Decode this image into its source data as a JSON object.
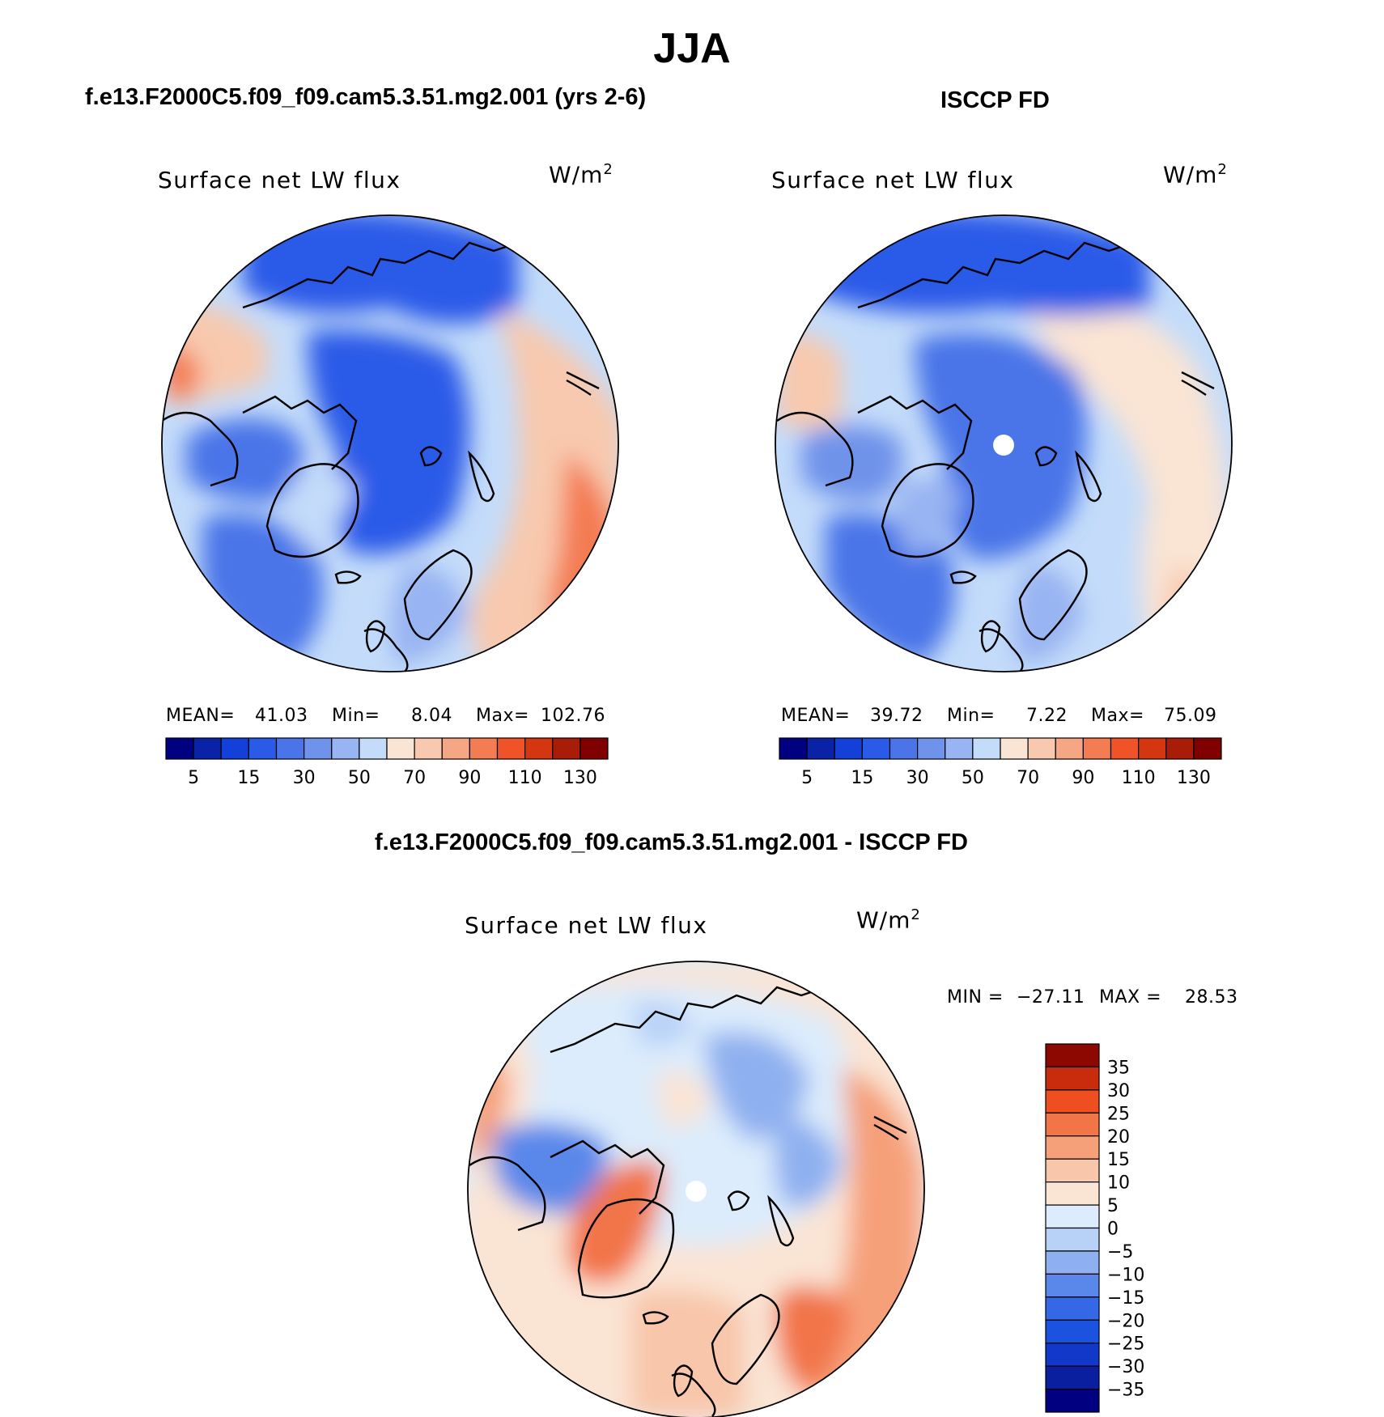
{
  "figure": {
    "title": "JJA",
    "variable": "Surface net LW flux",
    "units": "W/m",
    "units_exponent": "2"
  },
  "chart_data": [
    {
      "type": "heatmap",
      "projection": "north-polar-stereographic",
      "title": "f.e13.F2000C5.f09_f09.cam5.3.51.mg2.001 (yrs 2-6)",
      "subtitle": "Surface net LW flux",
      "units": "W/m2",
      "stats": {
        "mean_label": "MEAN=",
        "mean": "41.03",
        "min_label": "Min=",
        "min": "8.04",
        "max_label": "Max=",
        "max": "102.76"
      },
      "colorbar": {
        "orientation": "horizontal",
        "levels": [
          5,
          10,
          15,
          20,
          30,
          40,
          50,
          60,
          70,
          80,
          90,
          100,
          110,
          120,
          130
        ],
        "labels": [
          "5",
          "15",
          "30",
          "50",
          "70",
          "90",
          "110",
          "130"
        ],
        "colors": [
          "#000080",
          "#0a22a8",
          "#1340d8",
          "#2a5ae8",
          "#4a74e8",
          "#6f93ea",
          "#98b4f2",
          "#c4dcfa",
          "#fae4d4",
          "#f8c9ae",
          "#f6a682",
          "#f47c52",
          "#f05328",
          "#d43610",
          "#a81c08",
          "#800000"
        ]
      },
      "shading": {
        "north_pole": 1,
        "canada": 2,
        "greenland": 6,
        "atlantic": 3,
        "europe": 8,
        "east": 9,
        "pacific": 8
      }
    },
    {
      "type": "heatmap",
      "projection": "north-polar-stereographic",
      "title": "ISCCP FD",
      "subtitle": "Surface net LW flux",
      "units": "W/m2",
      "stats": {
        "mean_label": "MEAN=",
        "mean": "39.72",
        "min_label": "Min=",
        "min": "7.22",
        "max_label": "Max=",
        "max": "75.09"
      },
      "colorbar": {
        "orientation": "horizontal",
        "levels": [
          5,
          10,
          15,
          20,
          30,
          40,
          50,
          60,
          70,
          80,
          90,
          100,
          110,
          120,
          130
        ],
        "labels": [
          "5",
          "15",
          "30",
          "50",
          "70",
          "90",
          "110",
          "130"
        ],
        "colors": [
          "#000080",
          "#0a22a8",
          "#1340d8",
          "#2a5ae8",
          "#4a74e8",
          "#6f93ea",
          "#98b4f2",
          "#c4dcfa",
          "#fae4d4",
          "#f8c9ae",
          "#f6a682",
          "#f47c52",
          "#f05328",
          "#d43610",
          "#a81c08",
          "#800000"
        ]
      }
    },
    {
      "type": "heatmap",
      "projection": "north-polar-stereographic",
      "title": "f.e13.F2000C5.f09_f09.cam5.3.51.mg2.001 - ISCCP FD",
      "subtitle": "Surface net LW flux",
      "units": "W/m2",
      "stats": {
        "min_label": "MIN =",
        "min": "−27.11",
        "max_label": "MAX =",
        "max": "28.53"
      },
      "colorbar": {
        "orientation": "vertical",
        "levels": [
          -35,
          -30,
          -25,
          -20,
          -15,
          -10,
          -5,
          0,
          5,
          10,
          15,
          20,
          25,
          30,
          35
        ],
        "labels": [
          "35",
          "30",
          "25",
          "20",
          "15",
          "10",
          "5",
          "0",
          "−5",
          "−10",
          "−15",
          "−20",
          "−25",
          "−30",
          "−35"
        ],
        "colors": [
          "#000080",
          "#0a1fa0",
          "#1138c8",
          "#1c52e0",
          "#3468e6",
          "#5a88ea",
          "#8fb0f0",
          "#b8d2f7",
          "#dcecfc",
          "#fae4d4",
          "#f8c6aa",
          "#f6a07a",
          "#f27548",
          "#ee4e20",
          "#c82c0c",
          "#8c0800"
        ]
      }
    }
  ]
}
